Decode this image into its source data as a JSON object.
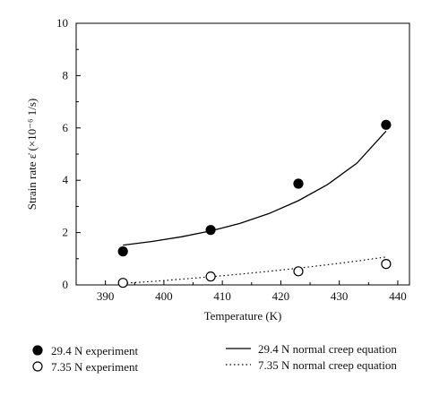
{
  "chart_data": {
    "type": "scatter",
    "title": "",
    "xlabel": "Temperature (K)",
    "ylabel": "Strain rate ε̇ (×10⁻⁶ 1/s)",
    "xlim": [
      385,
      442
    ],
    "ylim": [
      0,
      10
    ],
    "xticks": [
      390,
      400,
      410,
      420,
      430,
      440
    ],
    "yticks": [
      0,
      2,
      4,
      6,
      8,
      10
    ],
    "grid": false,
    "legend_placement": "bottom",
    "series": [
      {
        "name": "29.4 N experiment",
        "kind": "points",
        "marker": "filled-circle",
        "color": "#000000",
        "x": [
          393,
          408,
          423,
          438
        ],
        "y": [
          1.28,
          2.1,
          3.87,
          6.12
        ]
      },
      {
        "name": "7.35 N experiment",
        "kind": "points",
        "marker": "open-circle",
        "color": "#000000",
        "x": [
          393,
          408,
          423,
          438
        ],
        "y": [
          0.08,
          0.32,
          0.52,
          0.8
        ]
      },
      {
        "name": "29.4 N normal creep equation",
        "kind": "line",
        "style": "solid",
        "color": "#000000",
        "x": [
          393,
          398,
          403,
          408,
          413,
          418,
          423,
          428,
          433,
          438
        ],
        "y": [
          1.52,
          1.66,
          1.84,
          2.06,
          2.35,
          2.73,
          3.22,
          3.84,
          4.65,
          5.88
        ]
      },
      {
        "name": "7.35 N normal creep equation",
        "kind": "line",
        "style": "dotted",
        "color": "#000000",
        "x": [
          393,
          398,
          403,
          408,
          413,
          418,
          423,
          428,
          433,
          438
        ],
        "y": [
          0.06,
          0.13,
          0.22,
          0.31,
          0.41,
          0.52,
          0.64,
          0.77,
          0.91,
          1.07
        ]
      }
    ]
  }
}
